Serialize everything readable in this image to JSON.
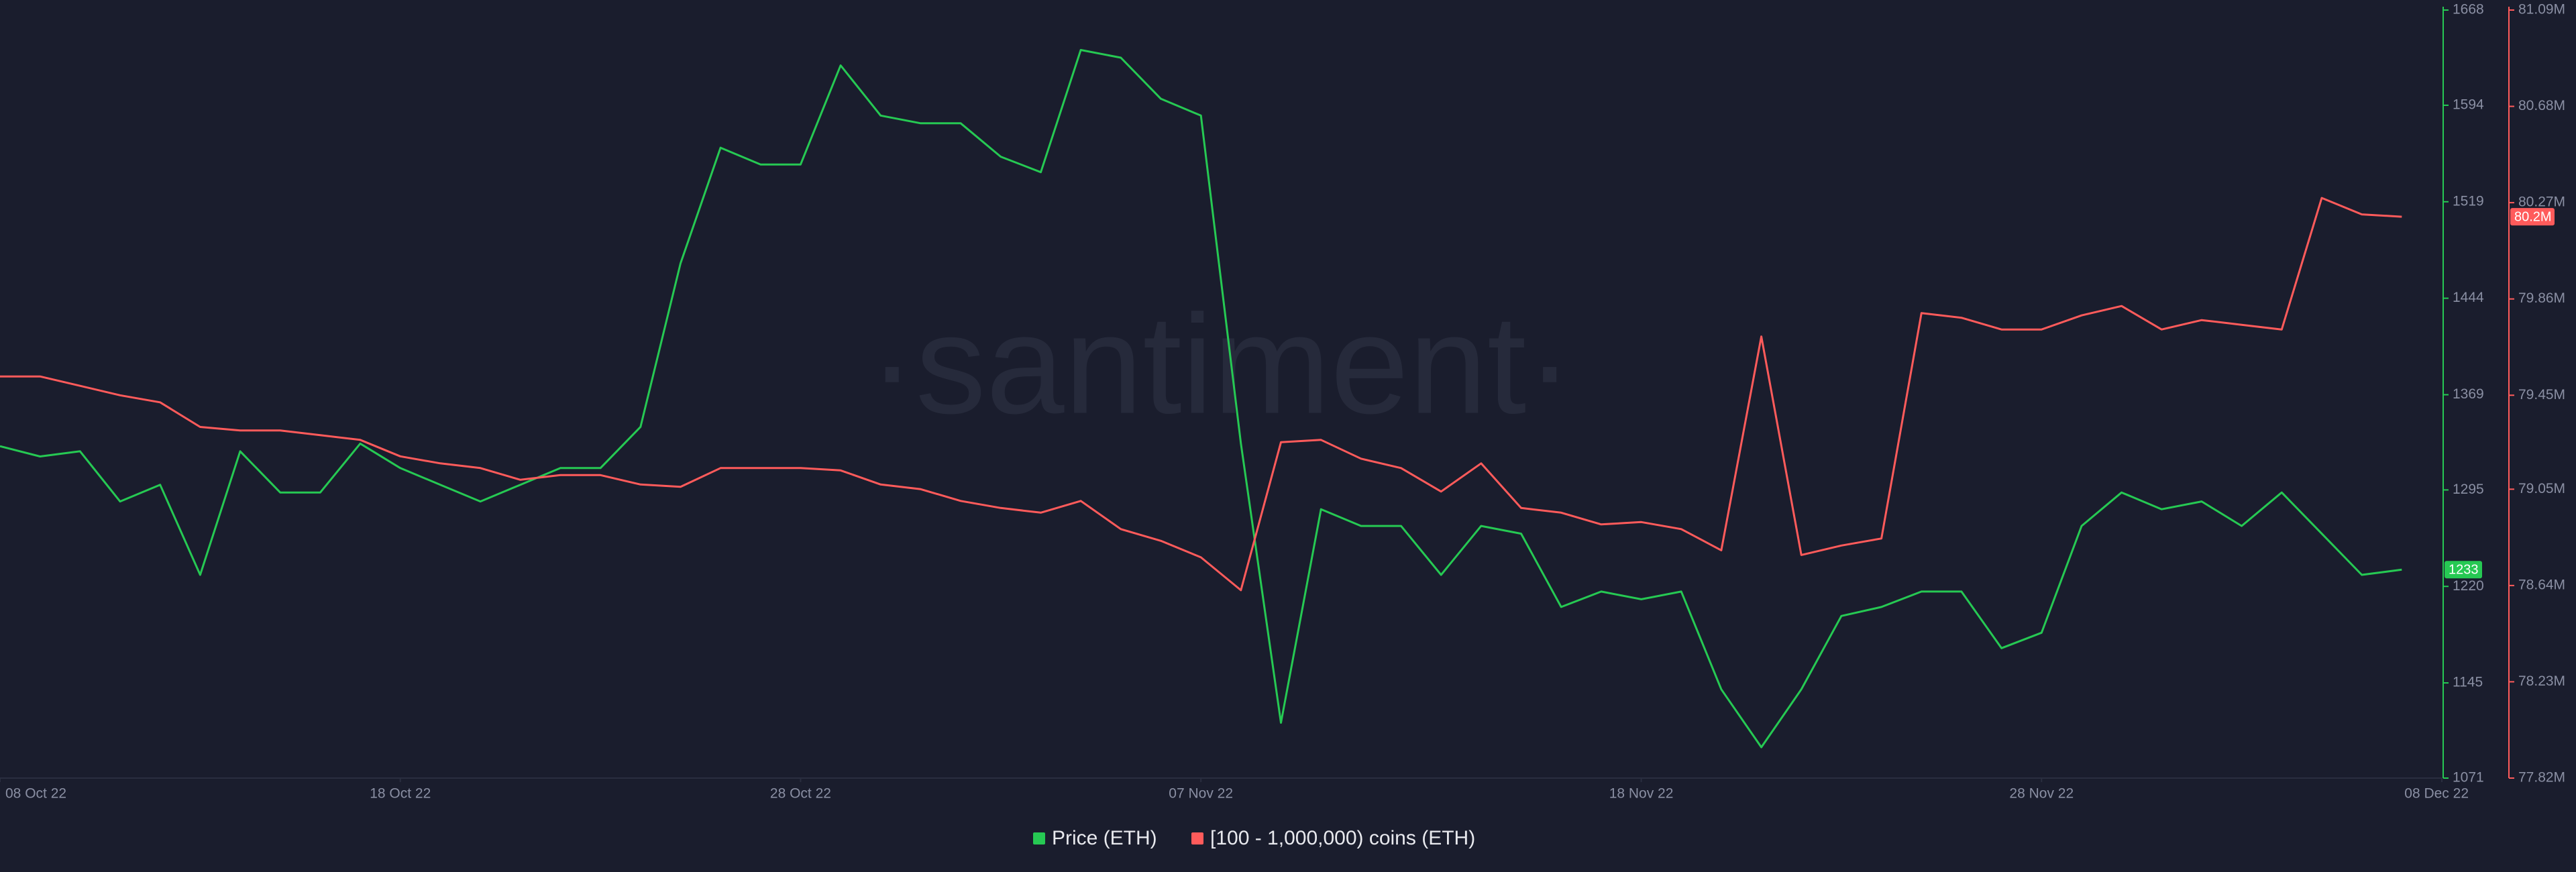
{
  "chart_data": {
    "type": "line",
    "watermark": "·santiment·",
    "x": [
      "2022-10-08",
      "2022-10-09",
      "2022-10-10",
      "2022-10-11",
      "2022-10-12",
      "2022-10-13",
      "2022-10-14",
      "2022-10-15",
      "2022-10-16",
      "2022-10-17",
      "2022-10-18",
      "2022-10-19",
      "2022-10-20",
      "2022-10-21",
      "2022-10-22",
      "2022-10-23",
      "2022-10-24",
      "2022-10-25",
      "2022-10-26",
      "2022-10-27",
      "2022-10-28",
      "2022-10-29",
      "2022-10-30",
      "2022-10-31",
      "2022-11-01",
      "2022-11-02",
      "2022-11-03",
      "2022-11-04",
      "2022-11-05",
      "2022-11-06",
      "2022-11-07",
      "2022-11-08",
      "2022-11-09",
      "2022-11-10",
      "2022-11-11",
      "2022-11-12",
      "2022-11-13",
      "2022-11-14",
      "2022-11-15",
      "2022-11-16",
      "2022-11-17",
      "2022-11-18",
      "2022-11-19",
      "2022-11-20",
      "2022-11-21",
      "2022-11-22",
      "2022-11-23",
      "2022-11-24",
      "2022-11-25",
      "2022-11-26",
      "2022-11-27",
      "2022-11-28",
      "2022-11-29",
      "2022-11-30",
      "2022-12-01",
      "2022-12-02",
      "2022-12-03",
      "2022-12-04",
      "2022-12-05",
      "2022-12-06",
      "2022-12-07"
    ],
    "xlim": [
      "2022-10-08",
      "2022-12-08"
    ],
    "xticks": [
      {
        "value": "2022-10-08",
        "label": "08 Oct 22"
      },
      {
        "value": "2022-10-18",
        "label": "18 Oct 22"
      },
      {
        "value": "2022-10-28",
        "label": "28 Oct 22"
      },
      {
        "value": "2022-11-07",
        "label": "07 Nov 22"
      },
      {
        "value": "2022-11-18",
        "label": "18 Nov 22"
      },
      {
        "value": "2022-11-28",
        "label": "28 Nov 22"
      },
      {
        "value": "2022-12-08",
        "label": "08 Dec 22"
      }
    ],
    "ylim": [
      1071,
      1668
    ],
    "yticks": [
      1071,
      1145,
      1220,
      1295,
      1369,
      1444,
      1519,
      1594,
      1668
    ],
    "y2lim": [
      77820000,
      81090000
    ],
    "y2ticks": [
      {
        "value": 77820000,
        "label": "77.82M"
      },
      {
        "value": 78230000,
        "label": "78.23M"
      },
      {
        "value": 78640000,
        "label": "78.64M"
      },
      {
        "value": 79050000,
        "label": "79.05M"
      },
      {
        "value": 79450000,
        "label": "79.45M"
      },
      {
        "value": 79860000,
        "label": "79.86M"
      },
      {
        "value": 80270000,
        "label": "80.27M"
      },
      {
        "value": 80680000,
        "label": "80.68M"
      },
      {
        "value": 81090000,
        "label": "81.09M"
      }
    ],
    "series": [
      {
        "name": "Price (ETH)",
        "color": "#26c953",
        "last_label": "1233",
        "values": [
          1329,
          1321,
          1325,
          1286,
          1299,
          1229,
          1325,
          1293,
          1293,
          1331,
          1312,
          1299,
          1286,
          1299,
          1312,
          1312,
          1344,
          1471,
          1561,
          1548,
          1548,
          1625,
          1586,
          1580,
          1580,
          1554,
          1542,
          1637,
          1631,
          1599,
          1586,
          1331,
          1114,
          1280,
          1267,
          1267,
          1229,
          1267,
          1261,
          1204,
          1216,
          1210,
          1216,
          1140,
          1095,
          1140,
          1197,
          1204,
          1216,
          1216,
          1172,
          1184,
          1267,
          1293,
          1280,
          1286,
          1267,
          1293,
          1261,
          1229,
          1233
        ]
      },
      {
        "name": "[100 - 1,000,000) coins (ETH)",
        "color": "#ff5b5b",
        "axis": "y2",
        "last_label": "80.2M",
        "values": [
          79530000,
          79530000,
          79490000,
          79450000,
          79420000,
          79315000,
          79300000,
          79300000,
          79280000,
          79260000,
          79190000,
          79160000,
          79140000,
          79090000,
          79110000,
          79110000,
          79070000,
          79060000,
          79140000,
          79140000,
          79140000,
          79130000,
          79070000,
          79050000,
          79000000,
          78970000,
          78950000,
          79000000,
          78880000,
          78830000,
          78760000,
          78620000,
          79250000,
          79260000,
          79180000,
          79140000,
          79040000,
          79160000,
          78970000,
          78950000,
          78900000,
          78910000,
          78880000,
          78790000,
          79700000,
          78770000,
          78810000,
          78840000,
          79800000,
          79780000,
          79730000,
          79730000,
          79790000,
          79830000,
          79730000,
          79770000,
          79750000,
          79730000,
          80290000,
          80220000,
          80210000
        ]
      }
    ]
  }
}
